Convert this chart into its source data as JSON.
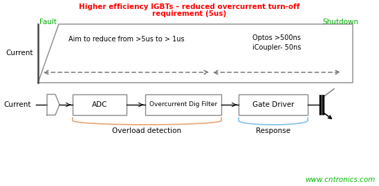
{
  "title_line1": "Higher efficiency IGBTs – reduced overcurrent turn-off",
  "title_line2": "requirement (5us)",
  "title_color": "#ff0000",
  "fault_label": "Fault",
  "shutdown_label": "Shutdown",
  "label_color": "#00aa00",
  "current_label_top": "Current",
  "current_label_bot": "Current",
  "aim_text": "Aim to reduce from >5us to > 1us",
  "optos_text": "Optos >500ns\niCoupler- 50ns",
  "bg_color": "#ffffff",
  "dashed_color": "#666666",
  "box_edge_color": "#888888",
  "trap_edge_color": "#888888",
  "watermark": "www.cntronics.com",
  "watermark_color": "#00bb00",
  "overload_label": "Overload detection",
  "response_label": "Response",
  "adc_label": "ADC",
  "filter_label": "Overcurrent Dig Filter",
  "gate_label": "Gate Driver",
  "orange_color": "#e8a87c",
  "blue_color": "#87c4e8",
  "figw": 5.48,
  "figh": 2.7,
  "dpi": 100
}
